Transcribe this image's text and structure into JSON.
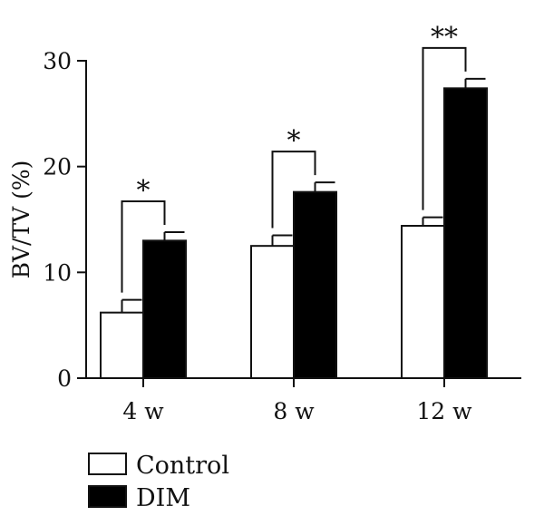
{
  "chart_data": {
    "type": "bar",
    "title": "",
    "xlabel": "",
    "ylabel": "BV/TV (%)",
    "categories": [
      "4 w",
      "8 w",
      "12 w"
    ],
    "series": [
      {
        "name": "Control",
        "values": [
          6.2,
          12.5,
          14.4
        ],
        "errors": [
          1.2,
          1.0,
          0.8
        ],
        "color": "#ffffff"
      },
      {
        "name": "DIM",
        "values": [
          13.0,
          17.6,
          27.4
        ],
        "errors": [
          0.8,
          0.9,
          0.9
        ],
        "color": "#000000"
      }
    ],
    "ylim": [
      0,
      30
    ],
    "yticks": [
      "0",
      "10",
      "20",
      "30"
    ],
    "significance": [
      "*",
      "*",
      "**"
    ],
    "grid": false,
    "legend_position": "bottom-left"
  }
}
